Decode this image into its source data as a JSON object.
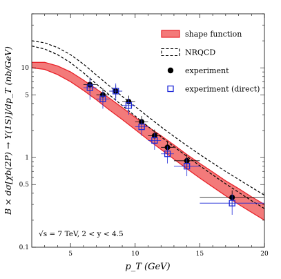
{
  "chart_data": {
    "type": "line",
    "xlabel": "p_T   (GeV)",
    "ylabel": "B × dσ[χb(2P) → Υ(1S)]/dp_T   (nb/GeV)",
    "annotation": "√s = 7 TeV, 2 < y < 4.5",
    "xlim": [
      2,
      20
    ],
    "ylim": [
      0.1,
      40
    ],
    "yscale": "log",
    "x_ticks": [
      5,
      10,
      15,
      20
    ],
    "y_ticks": [
      0.1,
      0.5,
      1,
      5,
      10
    ],
    "y_tick_labels": [
      "0.1",
      "0.5",
      "1",
      "5",
      "10"
    ],
    "legend_position": "top-right",
    "series": [
      {
        "name": "shape function",
        "kind": "band",
        "color": "#e8232a",
        "fill": "#f37a7a",
        "x": [
          2,
          3,
          4,
          5,
          6,
          7,
          8,
          9,
          10,
          11,
          12,
          13,
          14,
          15,
          16,
          17,
          18,
          19,
          20
        ],
        "upper": [
          11.5,
          11.5,
          10.5,
          9.0,
          7.3,
          5.8,
          4.6,
          3.6,
          2.8,
          2.2,
          1.75,
          1.38,
          1.08,
          0.86,
          0.69,
          0.55,
          0.45,
          0.365,
          0.3
        ],
        "lower": [
          10.0,
          9.6,
          8.4,
          7.0,
          5.6,
          4.4,
          3.4,
          2.65,
          2.05,
          1.58,
          1.23,
          0.96,
          0.75,
          0.59,
          0.47,
          0.375,
          0.3,
          0.245,
          0.2
        ]
      },
      {
        "name": "NRQCD",
        "kind": "band-dashed",
        "color": "#000000",
        "x": [
          2,
          3,
          4,
          5,
          6,
          7,
          8,
          9,
          10,
          11,
          12,
          13,
          14,
          15,
          16,
          17,
          18,
          19,
          20
        ],
        "upper": [
          20.0,
          19.0,
          16.8,
          14.0,
          11.0,
          8.3,
          6.3,
          4.8,
          3.7,
          2.85,
          2.2,
          1.72,
          1.36,
          1.08,
          0.87,
          0.7,
          0.57,
          0.465,
          0.38
        ],
        "lower": [
          17.5,
          16.2,
          14.0,
          11.4,
          8.8,
          6.6,
          5.0,
          3.8,
          2.9,
          2.22,
          1.7,
          1.32,
          1.03,
          0.81,
          0.64,
          0.51,
          0.41,
          0.33,
          0.27
        ]
      },
      {
        "name": "experiment",
        "kind": "points-filled",
        "color": "#000000",
        "points": [
          {
            "x": 6.5,
            "y": 6.5,
            "xlo": 6.0,
            "xhi": 7.0,
            "ylo": 5.2,
            "yhi": 7.8
          },
          {
            "x": 7.5,
            "y": 5.0,
            "xlo": 7.0,
            "xhi": 8.0,
            "ylo": 4.1,
            "yhi": 5.9
          },
          {
            "x": 8.5,
            "y": 5.5,
            "xlo": 8.0,
            "xhi": 9.0,
            "ylo": 4.6,
            "yhi": 6.4
          },
          {
            "x": 9.5,
            "y": 4.2,
            "xlo": 9.0,
            "xhi": 10.0,
            "ylo": 3.5,
            "yhi": 4.9
          },
          {
            "x": 10.5,
            "y": 2.5,
            "xlo": 10.0,
            "xhi": 11.0,
            "ylo": 2.1,
            "yhi": 2.9
          },
          {
            "x": 11.5,
            "y": 1.75,
            "xlo": 11.0,
            "xhi": 12.0,
            "ylo": 1.45,
            "yhi": 2.05
          },
          {
            "x": 12.5,
            "y": 1.3,
            "xlo": 12.0,
            "xhi": 13.0,
            "ylo": 1.08,
            "yhi": 1.52
          },
          {
            "x": 14.0,
            "y": 0.92,
            "xlo": 13.0,
            "xhi": 15.0,
            "ylo": 0.76,
            "yhi": 1.08
          },
          {
            "x": 17.5,
            "y": 0.36,
            "xlo": 15.0,
            "xhi": 20.0,
            "ylo": 0.29,
            "yhi": 0.43
          }
        ]
      },
      {
        "name": "experiment (direct)",
        "kind": "points-open-square",
        "color": "#1f2ad8",
        "points": [
          {
            "x": 6.5,
            "y": 6.0,
            "xlo": 6.0,
            "xhi": 7.0,
            "ylo": 4.4,
            "yhi": 7.6
          },
          {
            "x": 7.5,
            "y": 4.5,
            "xlo": 7.0,
            "xhi": 8.0,
            "ylo": 3.5,
            "yhi": 5.5
          },
          {
            "x": 8.5,
            "y": 5.5,
            "xlo": 8.0,
            "xhi": 9.0,
            "ylo": 4.3,
            "yhi": 6.7
          },
          {
            "x": 9.5,
            "y": 3.8,
            "xlo": 9.0,
            "xhi": 10.0,
            "ylo": 3.0,
            "yhi": 4.6
          },
          {
            "x": 10.5,
            "y": 2.2,
            "xlo": 10.0,
            "xhi": 11.0,
            "ylo": 1.75,
            "yhi": 2.65
          },
          {
            "x": 11.5,
            "y": 1.55,
            "xlo": 11.0,
            "xhi": 12.0,
            "ylo": 1.22,
            "yhi": 1.88
          },
          {
            "x": 12.5,
            "y": 1.1,
            "xlo": 12.0,
            "xhi": 13.0,
            "ylo": 0.86,
            "yhi": 1.34
          },
          {
            "x": 14.0,
            "y": 0.8,
            "xlo": 13.0,
            "xhi": 15.0,
            "ylo": 0.62,
            "yhi": 0.98
          },
          {
            "x": 17.5,
            "y": 0.31,
            "xlo": 15.0,
            "xhi": 20.0,
            "ylo": 0.23,
            "yhi": 0.39
          }
        ]
      }
    ]
  }
}
